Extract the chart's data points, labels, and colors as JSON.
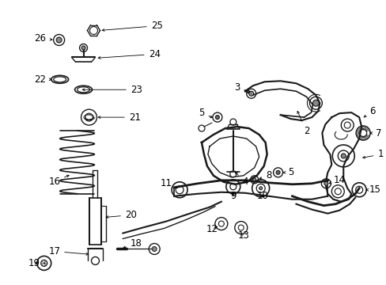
{
  "background_color": "#ffffff",
  "line_color": "#1a1a1a",
  "font_size": 8.5,
  "figsize": [
    4.89,
    3.6
  ],
  "dpi": 100
}
